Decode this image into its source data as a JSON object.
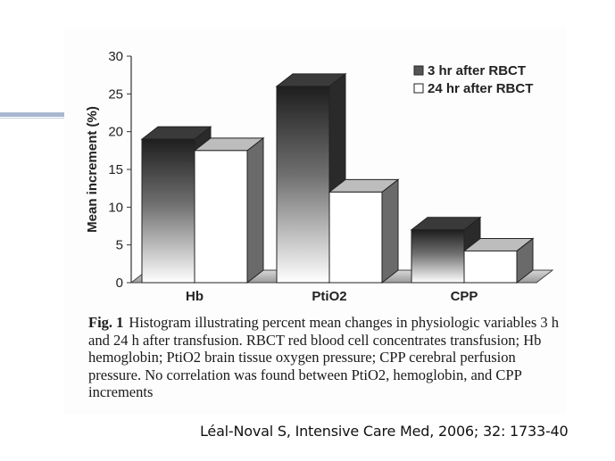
{
  "chart_data": {
    "type": "bar",
    "ylabel": "Mean increment (%)",
    "ylim": [
      0,
      30
    ],
    "yticks": [
      0,
      5,
      10,
      15,
      20,
      25,
      30
    ],
    "categories": [
      "Hb",
      "PtiO2",
      "CPP"
    ],
    "series": [
      {
        "name": "3 hr after RBCT",
        "values": [
          19,
          26,
          7
        ]
      },
      {
        "name": "24 hr after RBCT",
        "values": [
          17.5,
          12,
          4.2
        ]
      }
    ],
    "legend_position": "top-right",
    "grid": false,
    "style": "3d"
  },
  "caption": {
    "label": "Fig. 1",
    "text": "Histogram illustrating percent mean changes in physiologic variables 3 h and 24 h after transfusion. RBCT red blood cell concentrates transfusion; Hb hemoglobin; PtiO2 brain tissue oxygen pressure; CPP cerebral perfusion pressure. No correlation was found between PtiO2, hemoglobin, and CPP increments"
  },
  "citation": "Léal-Noval S, Intensive Care Med, 2006; 32: 1733-40",
  "colors": {
    "series1_top": "#1e1e1e",
    "series1_bottom": "#ffffff",
    "series2": "#ffffff",
    "side_face": "#5a5a5a",
    "accent_line": "#a9b7cf"
  }
}
